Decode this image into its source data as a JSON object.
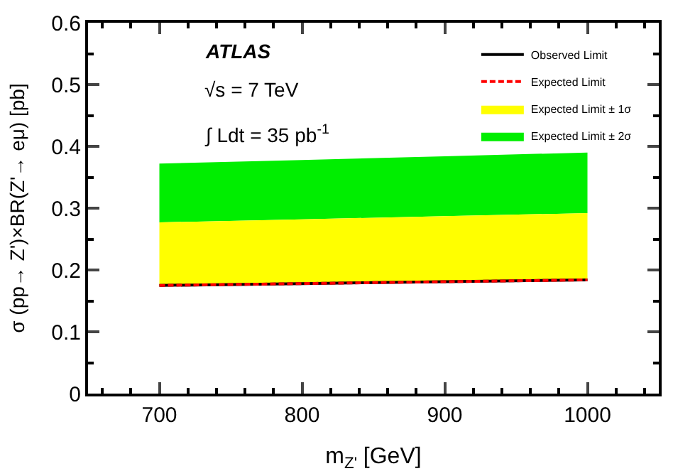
{
  "chart_data": {
    "type": "line",
    "xlabel": "m$_{Z'}$ [GeV]",
    "ylabel": "σ (pp→ Z')×BR(Z'→ eμ) [pb]",
    "x": [
      700,
      800,
      900,
      1000
    ],
    "series": [
      {
        "name": "Observed Limit",
        "color": "#000000",
        "line_style": "solid",
        "values": [
          0.175,
          0.178,
          0.181,
          0.184
        ]
      },
      {
        "name": "Expected Limit",
        "color": "#ff0000",
        "line_style": "dashed",
        "values": [
          0.175,
          0.178,
          0.181,
          0.184
        ]
      },
      {
        "name": "Expected Limit ± 1σ",
        "type": "area",
        "color": "#ffff00",
        "values": [
          0.277,
          0.282,
          0.287,
          0.292
        ]
      },
      {
        "name": "Expected Limit ± 2σ",
        "type": "area",
        "color": "#00ee00",
        "values": [
          0.372,
          0.378,
          0.384,
          0.39
        ]
      }
    ],
    "xlim": [
      650,
      1050
    ],
    "xticks": [
      700,
      800,
      900,
      1000
    ],
    "ylim": [
      0,
      0.6
    ],
    "yticks": [
      0,
      0.1,
      0.2,
      0.3,
      0.4,
      0.5,
      0.6
    ],
    "legend": "top right",
    "marker": "none",
    "annotations": [
      "ATLAS",
      "√s = 7 TeV",
      "∫ Ldt = 35 pb$^{-1}$"
    ]
  }
}
